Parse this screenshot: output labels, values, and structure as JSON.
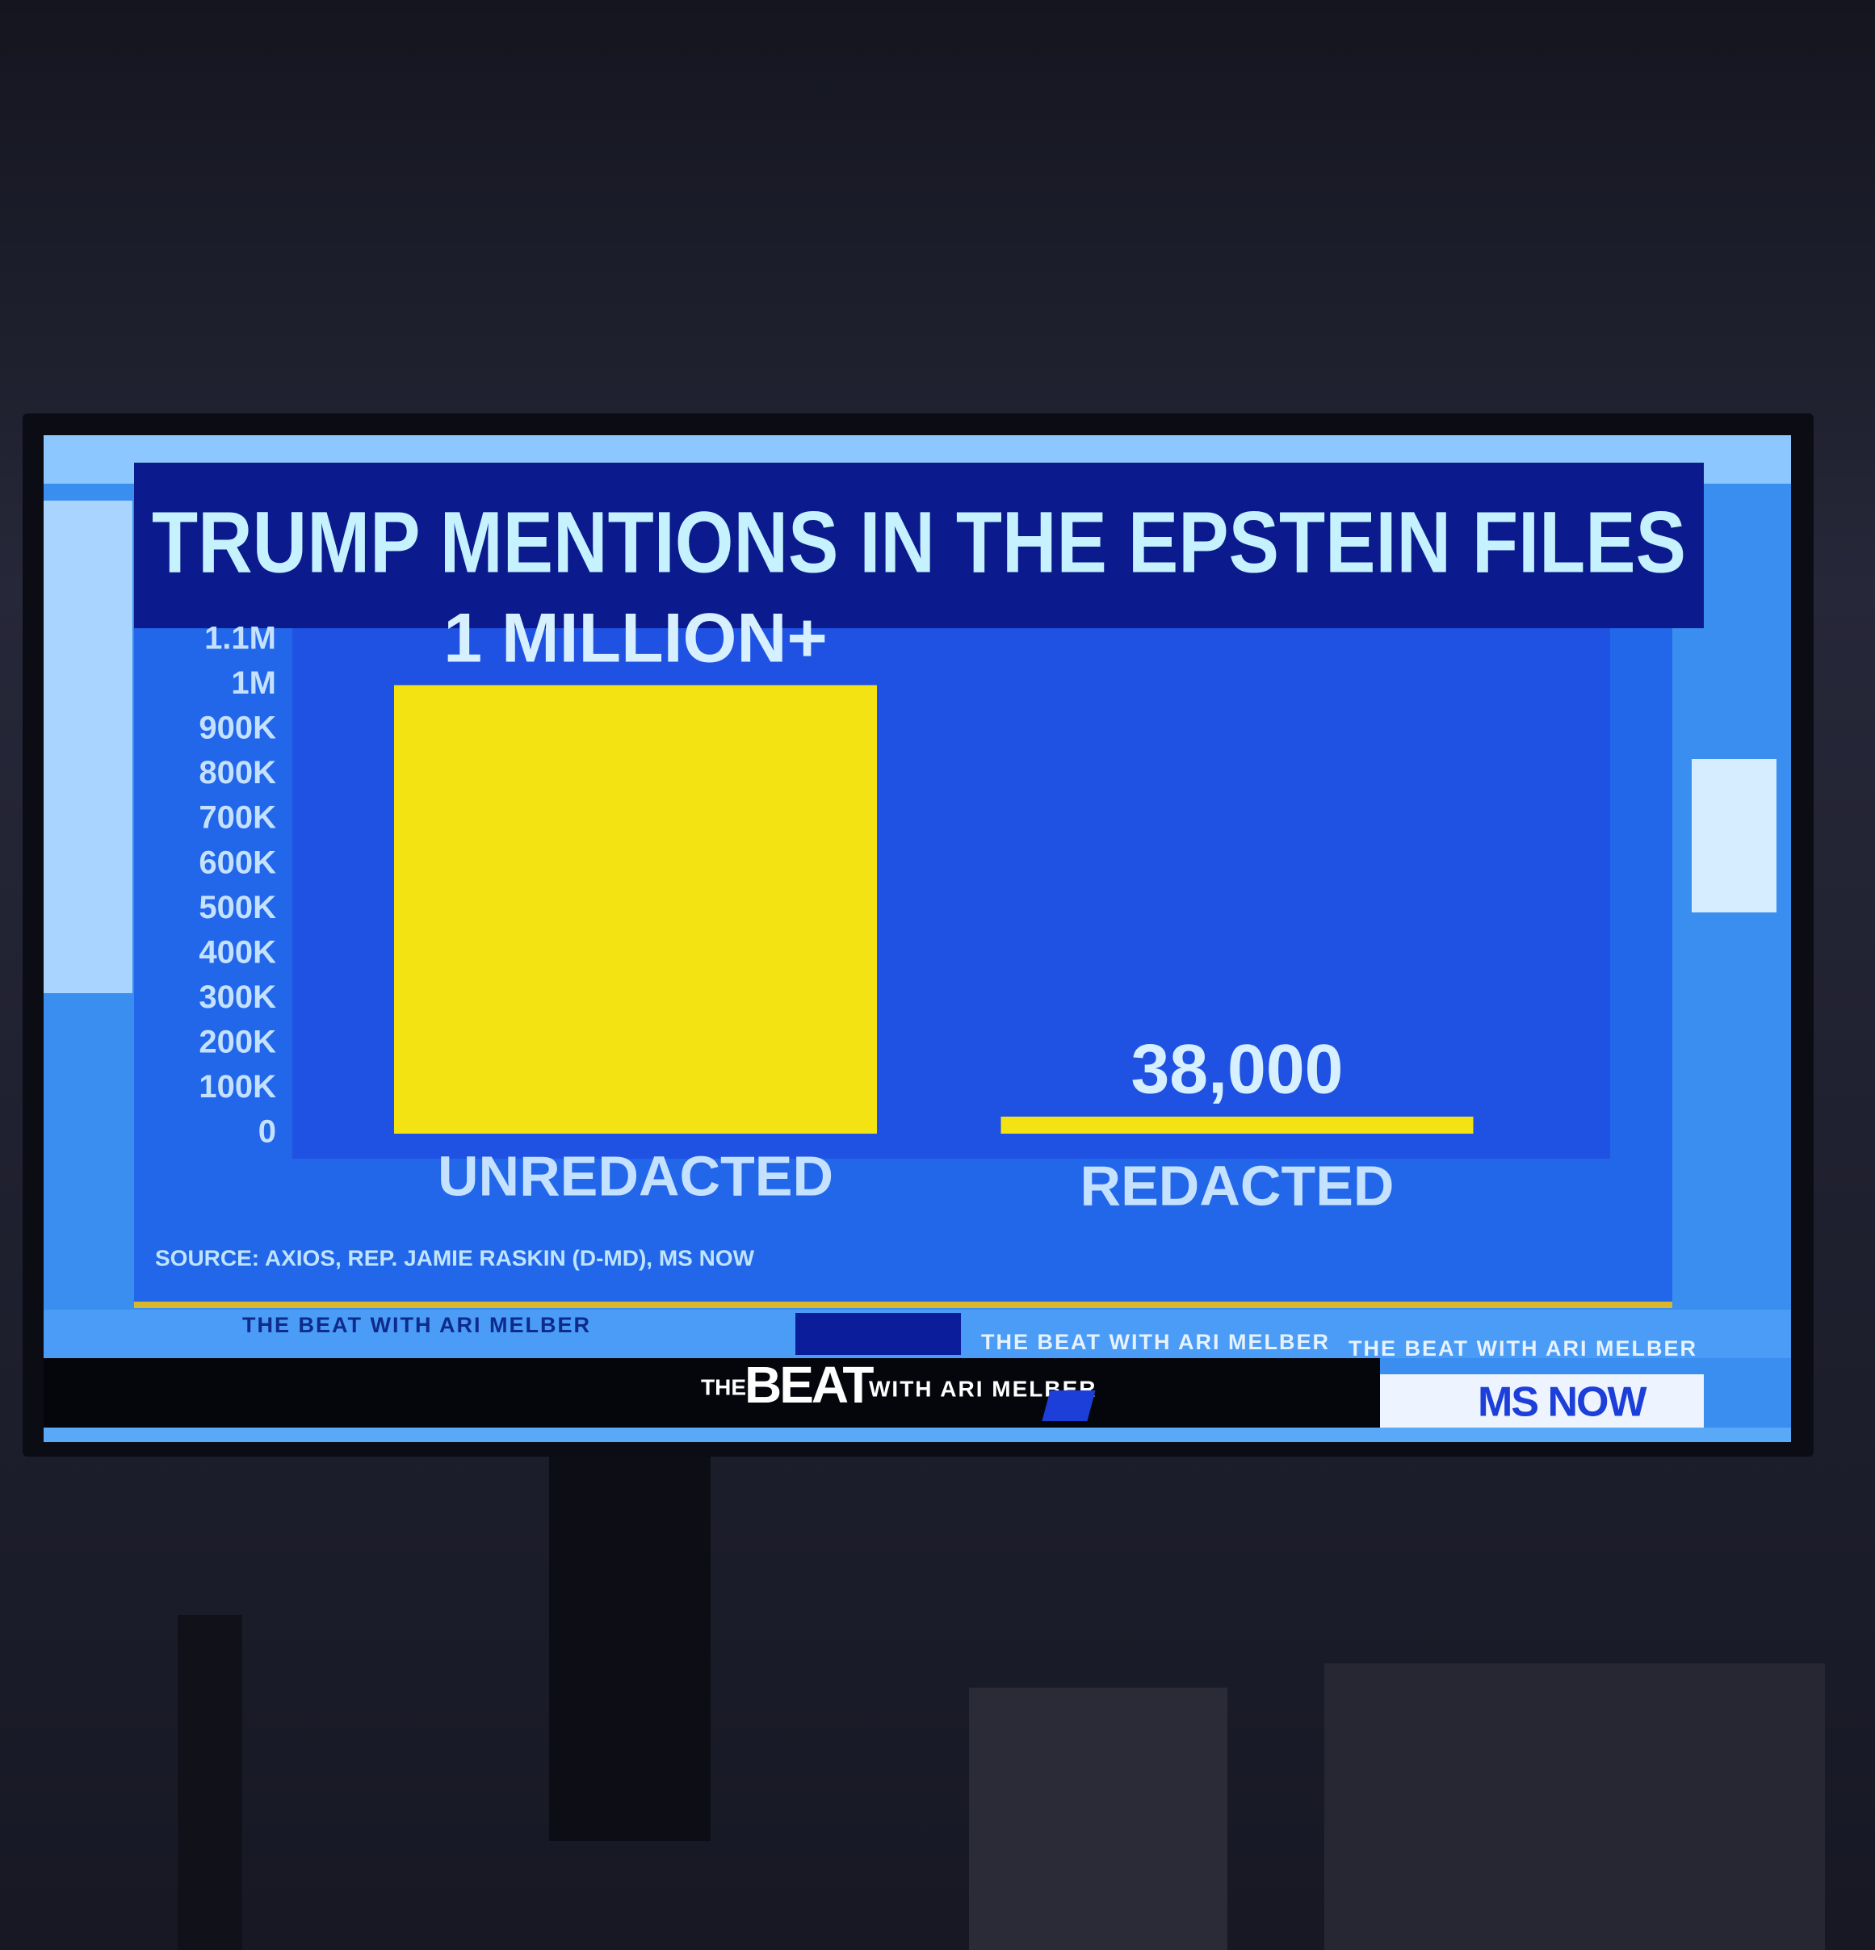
{
  "chart_data": {
    "type": "bar",
    "title": "TRUMP MENTIONS IN THE EPSTEIN FILES",
    "categories": [
      "UNREDACTED",
      "REDACTED"
    ],
    "values": [
      1000000,
      38000
    ],
    "value_labels": [
      "1 MILLION+",
      "38,000"
    ],
    "color": "#f4e313",
    "ylim": [
      0,
      1100000
    ],
    "yticks": [
      0,
      {
        "value": 100000,
        "label": "100K"
      },
      {
        "value": 200000,
        "label": "200K"
      },
      {
        "value": 300000,
        "label": "300K"
      },
      {
        "value": 400000,
        "label": "400K"
      },
      {
        "value": 500000,
        "label": "500K"
      },
      {
        "value": 600000,
        "label": "600K"
      },
      {
        "value": 700000,
        "label": "700K"
      },
      {
        "value": 800000,
        "label": "800K"
      },
      {
        "value": 900000,
        "label": "900K"
      },
      {
        "value": 1000000,
        "label": "1M"
      },
      {
        "value": 1100000,
        "label": "1.1M"
      }
    ],
    "grid": false,
    "source": "SOURCE: AXIOS, REP. JAMIE RASKIN (D-MD), MS NOW"
  },
  "broadcast": {
    "ticker": "THE BEAT WITH ARI MELBER",
    "show": {
      "the": "THE",
      "beat": "BEAT",
      "with": "WITH ARI MELBER"
    },
    "network": "MS NOW"
  }
}
